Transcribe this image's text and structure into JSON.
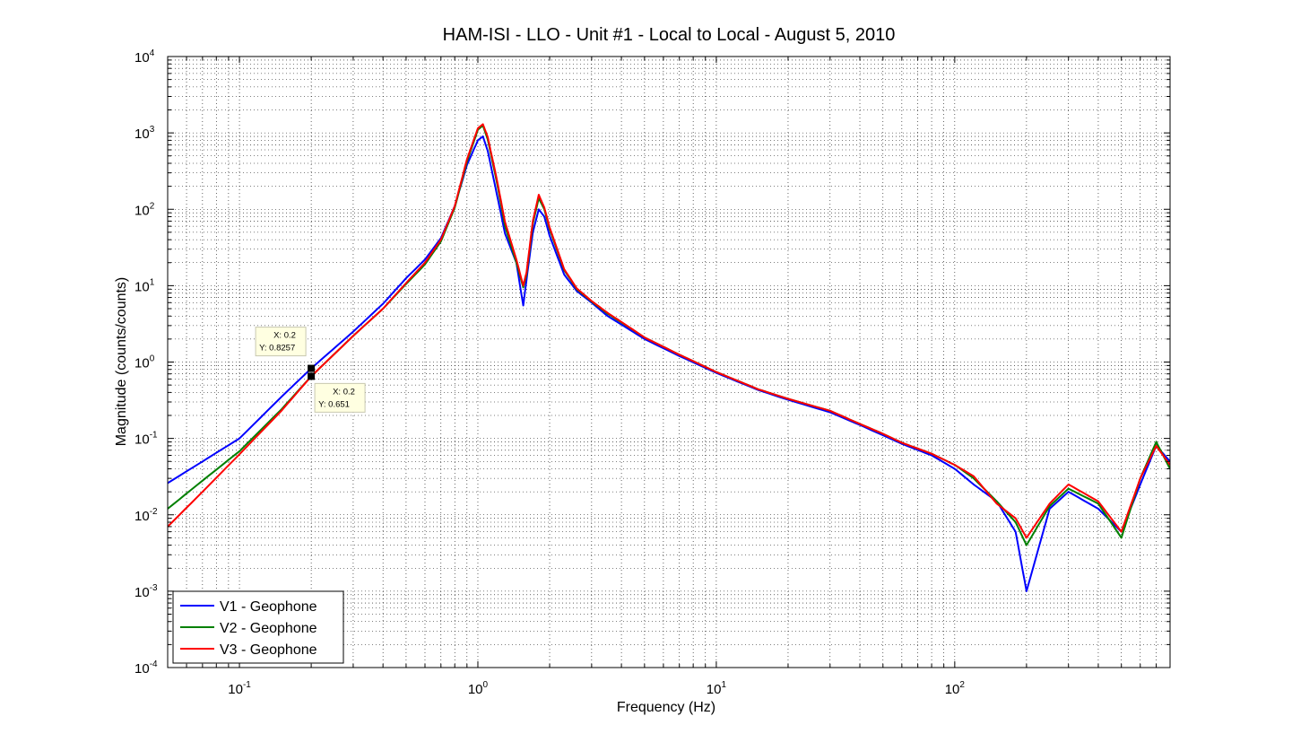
{
  "chart_data": {
    "type": "line",
    "title": "HAM-ISI - LLO - Unit #1 - Local to Local - August 5, 2010",
    "xlabel": "Frequency (Hz)",
    "ylabel": "Magnitude (counts/counts)",
    "xscale": "log",
    "yscale": "log",
    "xlim": [
      0.05,
      800
    ],
    "ylim": [
      0.0001,
      10000
    ],
    "grid": true,
    "legend_position": "bottom-left",
    "x_ticks": [
      {
        "mantissa": "10",
        "exp": "-1",
        "value": 0.1
      },
      {
        "mantissa": "10",
        "exp": "0",
        "value": 1
      },
      {
        "mantissa": "10",
        "exp": "1",
        "value": 10
      },
      {
        "mantissa": "10",
        "exp": "2",
        "value": 100
      }
    ],
    "y_ticks": [
      {
        "mantissa": "10",
        "exp": "-4",
        "value": 0.0001
      },
      {
        "mantissa": "10",
        "exp": "-3",
        "value": 0.001
      },
      {
        "mantissa": "10",
        "exp": "-2",
        "value": 0.01
      },
      {
        "mantissa": "10",
        "exp": "-1",
        "value": 0.1
      },
      {
        "mantissa": "10",
        "exp": "0",
        "value": 1
      },
      {
        "mantissa": "10",
        "exp": "1",
        "value": 10
      },
      {
        "mantissa": "10",
        "exp": "2",
        "value": 100
      },
      {
        "mantissa": "10",
        "exp": "3",
        "value": 1000
      },
      {
        "mantissa": "10",
        "exp": "4",
        "value": 10000
      }
    ],
    "series": [
      {
        "name": "V1 - Geophone",
        "color": "#0000ff",
        "x": [
          0.05,
          0.07,
          0.1,
          0.15,
          0.2,
          0.3,
          0.4,
          0.5,
          0.6,
          0.7,
          0.8,
          0.9,
          1.0,
          1.05,
          1.1,
          1.2,
          1.3,
          1.45,
          1.55,
          1.6,
          1.7,
          1.8,
          1.9,
          2.0,
          2.3,
          2.6,
          3.0,
          3.5,
          4.0,
          5.0,
          7.0,
          10,
          15,
          20,
          30,
          40,
          50,
          60,
          80,
          100,
          120,
          150,
          180,
          200,
          250,
          300,
          400,
          500,
          600,
          700,
          800
        ],
        "y": [
          0.026,
          0.05,
          0.1,
          0.35,
          0.8257,
          2.5,
          5.8,
          12.5,
          22,
          42,
          110,
          380,
          800,
          900,
          580,
          160,
          48,
          20,
          5.5,
          12,
          50,
          100,
          80,
          45,
          14,
          8.5,
          6.0,
          4.0,
          3.1,
          2.0,
          1.2,
          0.72,
          0.43,
          0.32,
          0.22,
          0.15,
          0.11,
          0.085,
          0.06,
          0.04,
          0.025,
          0.015,
          0.006,
          0.001,
          0.012,
          0.02,
          0.012,
          0.006,
          0.025,
          0.08,
          0.05
        ]
      },
      {
        "name": "V2 - Geophone",
        "color": "#008000",
        "x": [
          0.05,
          0.07,
          0.1,
          0.15,
          0.2,
          0.3,
          0.4,
          0.5,
          0.6,
          0.7,
          0.8,
          0.9,
          1.0,
          1.05,
          1.1,
          1.2,
          1.3,
          1.45,
          1.55,
          1.6,
          1.7,
          1.8,
          1.9,
          2.0,
          2.3,
          2.6,
          3.0,
          3.5,
          4.0,
          5.0,
          7.0,
          10,
          15,
          20,
          30,
          40,
          50,
          60,
          80,
          100,
          120,
          150,
          180,
          200,
          250,
          300,
          400,
          500,
          600,
          700,
          800
        ],
        "y": [
          0.012,
          0.028,
          0.068,
          0.24,
          0.651,
          2.2,
          5.0,
          10.5,
          19,
          38,
          105,
          420,
          1100,
          1250,
          820,
          230,
          60,
          20,
          9.5,
          14,
          65,
          140,
          100,
          55,
          16,
          9.0,
          6.2,
          4.3,
          3.3,
          2.1,
          1.25,
          0.74,
          0.44,
          0.33,
          0.23,
          0.155,
          0.115,
          0.088,
          0.063,
          0.045,
          0.03,
          0.015,
          0.008,
          0.004,
          0.013,
          0.022,
          0.014,
          0.005,
          0.03,
          0.09,
          0.04
        ]
      },
      {
        "name": "V3 - Geophone",
        "color": "#ff0000",
        "x": [
          0.05,
          0.07,
          0.1,
          0.15,
          0.2,
          0.3,
          0.4,
          0.5,
          0.6,
          0.7,
          0.8,
          0.9,
          1.0,
          1.05,
          1.1,
          1.2,
          1.3,
          1.45,
          1.55,
          1.6,
          1.7,
          1.8,
          1.9,
          2.0,
          2.3,
          2.6,
          3.0,
          3.5,
          4.0,
          5.0,
          7.0,
          10,
          15,
          20,
          30,
          40,
          50,
          60,
          80,
          100,
          120,
          150,
          180,
          200,
          250,
          300,
          400,
          500,
          600,
          700,
          800
        ],
        "y": [
          0.007,
          0.02,
          0.062,
          0.23,
          0.651,
          2.2,
          5.0,
          10.8,
          20,
          40,
          110,
          450,
          1150,
          1300,
          880,
          250,
          68,
          22,
          10,
          15,
          70,
          155,
          105,
          58,
          16.5,
          9.2,
          6.3,
          4.4,
          3.35,
          2.1,
          1.25,
          0.74,
          0.44,
          0.33,
          0.23,
          0.155,
          0.115,
          0.088,
          0.063,
          0.045,
          0.032,
          0.014,
          0.009,
          0.005,
          0.014,
          0.025,
          0.015,
          0.006,
          0.03,
          0.08,
          0.045
        ]
      }
    ],
    "annotations": [
      {
        "lines": [
          "X: 0.2",
          "Y: 0.8257"
        ],
        "x": 0.2,
        "y": 0.8257,
        "side": "above-left"
      },
      {
        "lines": [
          "X: 0.2",
          "Y: 0.651"
        ],
        "x": 0.2,
        "y": 0.651,
        "side": "below-right"
      }
    ]
  }
}
